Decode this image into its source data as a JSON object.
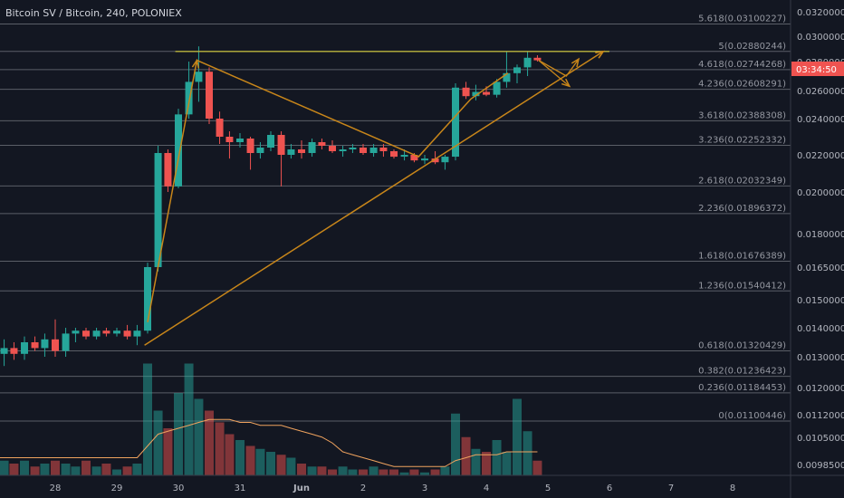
{
  "header": {
    "title": "Bitcoin SV / Bitcoin, 240, POLONIEX"
  },
  "colors": {
    "background": "#131722",
    "up": "#26a69a",
    "down": "#ef5350",
    "fib_line": "#9598a1",
    "drawing": "#c8861a",
    "horizontal_line": "#b9b23a",
    "ma_line": "#f0a35e",
    "axis_text": "#b2b5be",
    "price_tag": "#ef5350"
  },
  "price_tag": "03:34:50",
  "chart_data": {
    "type": "candlestick",
    "title": "Bitcoin SV / Bitcoin, 240, POLONIEX",
    "x_ticks": [
      "28",
      "29",
      "30",
      "31",
      "Jun",
      "2",
      "3",
      "4",
      "5",
      "6",
      "7",
      "8"
    ],
    "y_ticks": [
      "0.03200000",
      "0.03000000",
      "0.02800000",
      "0.02600000",
      "0.02400000",
      "0.02200000",
      "0.02000000",
      "0.01800000",
      "0.01650000",
      "0.01500000",
      "0.01400000",
      "0.01300000",
      "0.01200000",
      "0.01120000",
      "0.01050000",
      "0.00985000"
    ],
    "y_range": [
      0.0096,
      0.0325
    ],
    "fib_levels": [
      {
        "label": "5.618",
        "value": "0.03100227"
      },
      {
        "label": "5",
        "value": "0.02880244"
      },
      {
        "label": "4.618",
        "value": "0.02744268"
      },
      {
        "label": "4.236",
        "value": "0.02608291"
      },
      {
        "label": "3.618",
        "value": "0.02388308"
      },
      {
        "label": "3.236",
        "value": "0.02252332"
      },
      {
        "label": "2.618",
        "value": "0.02032349"
      },
      {
        "label": "2.236",
        "value": "0.01896372"
      },
      {
        "label": "1.618",
        "value": "0.01676389"
      },
      {
        "label": "1.236",
        "value": "0.01540412"
      },
      {
        "label": "0.618",
        "value": "0.01320429"
      },
      {
        "label": "0.382",
        "value": "0.01236423"
      },
      {
        "label": "0.236",
        "value": "0.01184453"
      },
      {
        "label": "0",
        "value": "0.01100446"
      }
    ],
    "candles": [
      {
        "d": "27.0",
        "o": 0.0123,
        "h": 0.0133,
        "l": 0.012,
        "c": 0.0131
      },
      {
        "d": "27.17",
        "o": 0.0131,
        "h": 0.0136,
        "l": 0.0127,
        "c": 0.0133
      },
      {
        "d": "27.33",
        "o": 0.0133,
        "h": 0.0135,
        "l": 0.0129,
        "c": 0.0131
      },
      {
        "d": "27.5",
        "o": 0.0131,
        "h": 0.0137,
        "l": 0.0129,
        "c": 0.0135
      },
      {
        "d": "27.67",
        "o": 0.0135,
        "h": 0.0137,
        "l": 0.0132,
        "c": 0.0133
      },
      {
        "d": "27.83",
        "o": 0.0133,
        "h": 0.0138,
        "l": 0.013,
        "c": 0.0136
      },
      {
        "d": "28.0",
        "o": 0.0136,
        "h": 0.0143,
        "l": 0.013,
        "c": 0.0132
      },
      {
        "d": "28.17",
        "o": 0.0132,
        "h": 0.014,
        "l": 0.013,
        "c": 0.0138
      },
      {
        "d": "28.33",
        "o": 0.0138,
        "h": 0.014,
        "l": 0.0135,
        "c": 0.0139
      },
      {
        "d": "28.5",
        "o": 0.0139,
        "h": 0.014,
        "l": 0.0136,
        "c": 0.0137
      },
      {
        "d": "28.67",
        "o": 0.0137,
        "h": 0.014,
        "l": 0.0136,
        "c": 0.0139
      },
      {
        "d": "28.83",
        "o": 0.0139,
        "h": 0.014,
        "l": 0.0137,
        "c": 0.0138
      },
      {
        "d": "29.0",
        "o": 0.0138,
        "h": 0.014,
        "l": 0.0137,
        "c": 0.0139
      },
      {
        "d": "29.17",
        "o": 0.0139,
        "h": 0.0141,
        "l": 0.0136,
        "c": 0.0137
      },
      {
        "d": "29.33",
        "o": 0.0137,
        "h": 0.0141,
        "l": 0.0134,
        "c": 0.0139
      },
      {
        "d": "29.5",
        "o": 0.0139,
        "h": 0.0167,
        "l": 0.0138,
        "c": 0.0165
      },
      {
        "d": "29.67",
        "o": 0.0165,
        "h": 0.0225,
        "l": 0.0163,
        "c": 0.0221
      },
      {
        "d": "29.83",
        "o": 0.0221,
        "h": 0.0223,
        "l": 0.02,
        "c": 0.0203
      },
      {
        "d": "30.0",
        "o": 0.0203,
        "h": 0.0247,
        "l": 0.0202,
        "c": 0.0243
      },
      {
        "d": "30.17",
        "o": 0.0243,
        "h": 0.028,
        "l": 0.024,
        "c": 0.0266
      },
      {
        "d": "30.33",
        "o": 0.0266,
        "h": 0.0292,
        "l": 0.0252,
        "c": 0.0273
      },
      {
        "d": "30.5",
        "o": 0.0273,
        "h": 0.0276,
        "l": 0.0237,
        "c": 0.024
      },
      {
        "d": "30.67",
        "o": 0.024,
        "h": 0.0245,
        "l": 0.0226,
        "c": 0.023
      },
      {
        "d": "30.83",
        "o": 0.023,
        "h": 0.0233,
        "l": 0.0218,
        "c": 0.0227
      },
      {
        "d": "31.0",
        "o": 0.0227,
        "h": 0.0232,
        "l": 0.0224,
        "c": 0.0229
      },
      {
        "d": "31.17",
        "o": 0.0229,
        "h": 0.023,
        "l": 0.0212,
        "c": 0.0221
      },
      {
        "d": "31.33",
        "o": 0.0221,
        "h": 0.0227,
        "l": 0.0218,
        "c": 0.0224
      },
      {
        "d": "31.5",
        "o": 0.0224,
        "h": 0.0233,
        "l": 0.0222,
        "c": 0.0231
      },
      {
        "d": "31.67",
        "o": 0.0231,
        "h": 0.0233,
        "l": 0.0203,
        "c": 0.022
      },
      {
        "d": "31.83",
        "o": 0.022,
        "h": 0.0226,
        "l": 0.0218,
        "c": 0.0223
      },
      {
        "d": "32.0",
        "o": 0.0223,
        "h": 0.0228,
        "l": 0.0218,
        "c": 0.0221
      },
      {
        "d": "32.17",
        "o": 0.0221,
        "h": 0.0229,
        "l": 0.0219,
        "c": 0.0227
      },
      {
        "d": "32.33",
        "o": 0.0227,
        "h": 0.0229,
        "l": 0.0223,
        "c": 0.0225
      },
      {
        "d": "32.5",
        "o": 0.0225,
        "h": 0.0228,
        "l": 0.0221,
        "c": 0.0222
      },
      {
        "d": "32.67",
        "o": 0.0222,
        "h": 0.0225,
        "l": 0.0219,
        "c": 0.0223
      },
      {
        "d": "32.83",
        "o": 0.0223,
        "h": 0.0226,
        "l": 0.0221,
        "c": 0.0224
      },
      {
        "d": "33.0",
        "o": 0.0224,
        "h": 0.0226,
        "l": 0.022,
        "c": 0.0221
      },
      {
        "d": "33.17",
        "o": 0.0221,
        "h": 0.0226,
        "l": 0.0219,
        "c": 0.0224
      },
      {
        "d": "33.33",
        "o": 0.0224,
        "h": 0.0226,
        "l": 0.0219,
        "c": 0.0222
      },
      {
        "d": "33.5",
        "o": 0.0222,
        "h": 0.0223,
        "l": 0.0218,
        "c": 0.0219
      },
      {
        "d": "33.67",
        "o": 0.0219,
        "h": 0.0223,
        "l": 0.0217,
        "c": 0.022
      },
      {
        "d": "33.83",
        "o": 0.022,
        "h": 0.0221,
        "l": 0.0216,
        "c": 0.0217
      },
      {
        "d": "34.0",
        "o": 0.0217,
        "h": 0.022,
        "l": 0.0215,
        "c": 0.0218
      },
      {
        "d": "34.17",
        "o": 0.0218,
        "h": 0.0222,
        "l": 0.0215,
        "c": 0.0216
      },
      {
        "d": "34.33",
        "o": 0.0216,
        "h": 0.022,
        "l": 0.0212,
        "c": 0.0219
      },
      {
        "d": "34.5",
        "o": 0.0219,
        "h": 0.0265,
        "l": 0.0217,
        "c": 0.0262
      },
      {
        "d": "34.67",
        "o": 0.0262,
        "h": 0.0266,
        "l": 0.0254,
        "c": 0.0256
      },
      {
        "d": "34.83",
        "o": 0.0256,
        "h": 0.0264,
        "l": 0.0253,
        "c": 0.0259
      },
      {
        "d": "35.0",
        "o": 0.0259,
        "h": 0.0263,
        "l": 0.0256,
        "c": 0.0257
      },
      {
        "d": "35.17",
        "o": 0.0257,
        "h": 0.0268,
        "l": 0.0255,
        "c": 0.0266
      },
      {
        "d": "35.33",
        "o": 0.0266,
        "h": 0.0288,
        "l": 0.0262,
        "c": 0.0272
      },
      {
        "d": "35.5",
        "o": 0.0272,
        "h": 0.0278,
        "l": 0.0265,
        "c": 0.0276
      },
      {
        "d": "35.67",
        "o": 0.0276,
        "h": 0.0288,
        "l": 0.027,
        "c": 0.0283
      },
      {
        "d": "35.83",
        "o": 0.0283,
        "h": 0.0285,
        "l": 0.028,
        "c": 0.0281
      }
    ],
    "volume": [
      2,
      5,
      4,
      5,
      3,
      4,
      5,
      4,
      3,
      5,
      3,
      4,
      2,
      3,
      4,
      38,
      22,
      16,
      28,
      38,
      26,
      22,
      18,
      14,
      12,
      10,
      9,
      8,
      7,
      6,
      4,
      3,
      3,
      2,
      3,
      2,
      2,
      3,
      2,
      2,
      1,
      2,
      1,
      2,
      3,
      21,
      13,
      9,
      8,
      12,
      8,
      26,
      15,
      5
    ],
    "volume_ma": [
      6,
      6,
      6,
      6,
      6,
      6,
      6,
      6,
      6,
      6,
      6,
      6,
      6,
      6,
      6,
      10,
      14,
      15,
      16,
      17,
      18,
      19,
      19,
      19,
      18,
      18,
      17,
      17,
      17,
      16,
      15,
      14,
      13,
      11,
      8,
      7,
      6,
      5,
      4,
      3,
      3,
      3,
      3,
      3,
      3,
      5,
      6,
      7,
      7,
      7,
      8,
      8,
      8,
      8
    ],
    "annotations": {
      "horizontal_line_value": 0.0288,
      "trendline": {
        "from": [
          29.45,
          0.0134
        ],
        "to": [
          36.9,
          0.0288
        ]
      },
      "zigzag": [
        [
          29.5,
          0.0142
        ],
        [
          30.3,
          0.0281
        ],
        [
          33.9,
          0.0219
        ],
        [
          34.75,
          0.0254
        ],
        [
          35.35,
          0.0272
        ]
      ],
      "path_up": [
        [
          29.5,
          0.0142
        ],
        [
          30.3,
          0.0281
        ]
      ],
      "projection": [
        [
          35.85,
          0.0281
        ],
        [
          36.3,
          0.027
        ],
        [
          36.5,
          0.0282
        ]
      ],
      "projection_alt": [
        [
          35.85,
          0.0281
        ],
        [
          36.35,
          0.0263
        ]
      ]
    }
  }
}
